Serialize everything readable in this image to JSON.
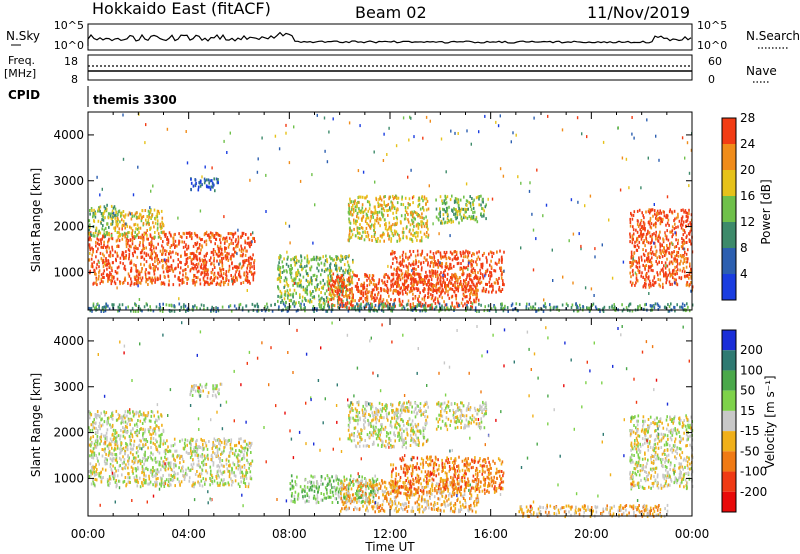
{
  "header": {
    "station": "Hokkaido East (fitACF)",
    "beam": "Beam 02",
    "date": "11/Nov/2019"
  },
  "top_panels": {
    "nsky_label": "N.Sky",
    "nsky_ticks": [
      "10^5",
      "10^0"
    ],
    "nsearch_label": "N.Search",
    "nsearch_ticks": [
      "10^5",
      "10^0"
    ],
    "freq_label": "Freq.",
    "freq_unit": "[MHz]",
    "freq_ticks": [
      "18",
      "8"
    ],
    "nave_label": "Nave",
    "nave_ticks": [
      "60",
      "0"
    ],
    "cpid_label": "CPID",
    "cpid_value": "themis 3300"
  },
  "chart_data": [
    {
      "type": "heatmap",
      "panel": "power",
      "ylabel": "Slant Range [km]",
      "xlabel": "Time UT",
      "x_ticks": [
        "00:00",
        "04:00",
        "08:00",
        "12:00",
        "16:00",
        "20:00",
        "00:00"
      ],
      "xlim_hours": [
        0,
        24
      ],
      "y_ticks": [
        "1000",
        "2000",
        "3000",
        "4000"
      ],
      "ylim": [
        180,
        4500
      ],
      "colorbar_label": "Power [dB]",
      "colorbar_ticks": [
        "4",
        "8",
        "12",
        "16",
        "20",
        "24",
        "28"
      ],
      "colorbar_colors": [
        "#1a3de0",
        "#2c5fb0",
        "#3d8a6a",
        "#6fc04a",
        "#e6c21a",
        "#f08c1a",
        "#f23c14"
      ],
      "regions": [
        {
          "t0": 0.0,
          "t1": 6.6,
          "r0": 750,
          "r1": 1900,
          "level": 6
        },
        {
          "t0": 0.0,
          "t1": 1.2,
          "r0": 1800,
          "r1": 2500,
          "level": 3
        },
        {
          "t0": 1.0,
          "t1": 3.0,
          "r0": 1800,
          "r1": 2400,
          "level": 4
        },
        {
          "t0": 4.0,
          "t1": 5.2,
          "r0": 2800,
          "r1": 3100,
          "level": 1
        },
        {
          "t0": 7.5,
          "t1": 10.5,
          "r0": 350,
          "r1": 1400,
          "level": 3
        },
        {
          "t0": 9.5,
          "t1": 15.5,
          "r0": 250,
          "r1": 1000,
          "level": 6
        },
        {
          "t0": 12.0,
          "t1": 16.5,
          "r0": 600,
          "r1": 1500,
          "level": 6
        },
        {
          "t0": 10.3,
          "t1": 13.5,
          "r0": 1700,
          "r1": 2700,
          "level": 4
        },
        {
          "t0": 13.8,
          "t1": 15.8,
          "r0": 2100,
          "r1": 2700,
          "level": 3
        },
        {
          "t0": 21.5,
          "t1": 24.0,
          "r0": 700,
          "r1": 2400,
          "level": 6
        },
        {
          "t0": 0.0,
          "t1": 24.0,
          "r0": 180,
          "r1": 350,
          "level": 2
        }
      ]
    },
    {
      "type": "heatmap",
      "panel": "velocity",
      "ylabel": "Slant Range [km]",
      "xlabel": "Time UT",
      "x_ticks": [
        "00:00",
        "04:00",
        "08:00",
        "12:00",
        "16:00",
        "20:00",
        "00:00"
      ],
      "xlim_hours": [
        0,
        24
      ],
      "y_ticks": [
        "1000",
        "2000",
        "3000",
        "4000"
      ],
      "ylim": [
        180,
        4500
      ],
      "colorbar_label": "Velocity [m s⁻¹]",
      "colorbar_ticks": [
        "200",
        "100",
        "50",
        "15",
        "-15",
        "-50",
        "-100",
        "-200"
      ],
      "colorbar_colors": [
        "#1a2ed8",
        "#2f7a72",
        "#4aa84a",
        "#7ed24a",
        "#c8c8c8",
        "#f0b01a",
        "#f07a14",
        "#f03a14",
        "#e80a0a"
      ],
      "regions": [
        {
          "t0": 0.0,
          "t1": 6.5,
          "r0": 850,
          "r1": 1900,
          "level": 4
        },
        {
          "t0": 0.0,
          "t1": 3.0,
          "r0": 1900,
          "r1": 2500,
          "level": 4
        },
        {
          "t0": 4.0,
          "t1": 5.3,
          "r0": 2800,
          "r1": 3100,
          "level": 4
        },
        {
          "t0": 8.0,
          "t1": 11.5,
          "r0": 500,
          "r1": 1100,
          "level": 3
        },
        {
          "t0": 10.0,
          "t1": 15.5,
          "r0": 300,
          "r1": 1000,
          "level": 5
        },
        {
          "t0": 12.0,
          "t1": 16.5,
          "r0": 700,
          "r1": 1500,
          "level": 6
        },
        {
          "t0": 10.3,
          "t1": 13.5,
          "r0": 1700,
          "r1": 2700,
          "level": 4
        },
        {
          "t0": 13.8,
          "t1": 15.8,
          "r0": 2100,
          "r1": 2700,
          "level": 4
        },
        {
          "t0": 21.5,
          "t1": 24.0,
          "r0": 800,
          "r1": 2400,
          "level": 4
        },
        {
          "t0": 17.0,
          "t1": 23.0,
          "r0": 200,
          "r1": 450,
          "level": 5
        }
      ]
    }
  ]
}
